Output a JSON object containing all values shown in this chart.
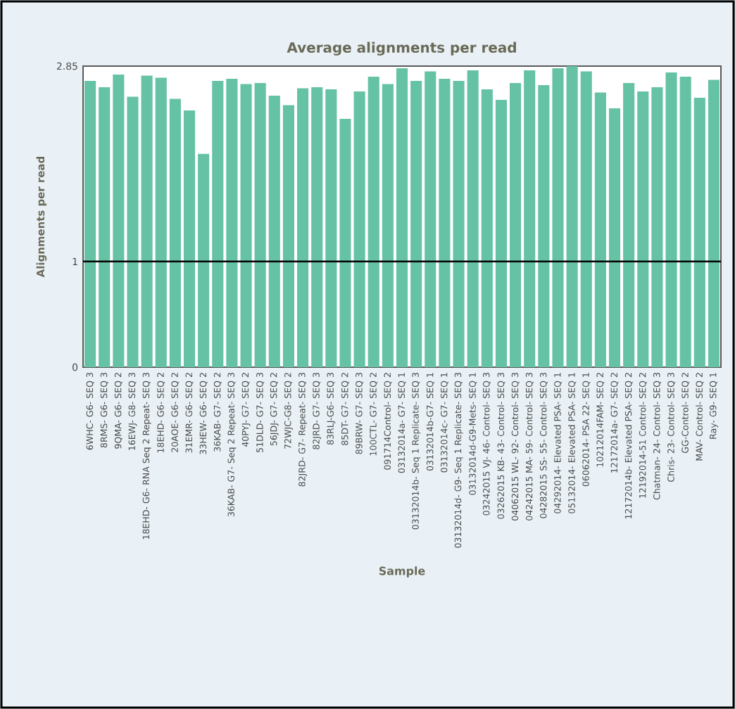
{
  "chart_data": {
    "type": "bar",
    "title": "Average alignments per read",
    "xlabel": "Sample",
    "ylabel": "Alignments per read",
    "categories": [
      "6WHC- G6- SEQ 3",
      "8RMS- G6- SEQ 3",
      "9QMA- G6- SEQ 2",
      "16EWJ- G8- SEQ 3",
      "18EHD- G6- RNA Seq 2 Repeat- SEQ 3",
      "18EHD- G6- SEQ 2",
      "20AOE- G6- SEQ 2",
      "31EMR- G6- SEQ 2",
      "33HEW- G6- SEQ 2",
      "36KAB- G7- SEQ 2",
      "36KAB- G7- Seq 2 Repeat- SEQ 3",
      "40PYJ- G7- SEQ 2",
      "51DLD- G7- SEQ 3",
      "56JDJ- G7- SEQ 2",
      "72WJC-G8- SEQ 2",
      "82JRD- G7- Repeat- SEQ 3",
      "82JRD- G7- SEQ 3",
      "83RLJ-G6- SEQ 3",
      "85DT- G7- SEQ 2",
      "89BRW- G7- SEQ 3",
      "100CTL- G7- SEQ 2",
      "091714Control- SEQ 2",
      "03132014a- G7- SEQ 1",
      "03132014b- Seq 1 Replicate- SEQ 3",
      "03132014b-G7- SEQ 1",
      "03132014c- G7- SEQ 1",
      "03132014d- G9- Seq 1 Replicate- SEQ 3",
      "03132014d-G9-Mets- SEQ 1",
      "03242015 VJ- 46- Control- SEQ 3",
      "03262015 KB- 43- Control- SEQ 3",
      "04062015 WL- 92- Control- SEQ 3",
      "04242015 MA- 59- Control- SEQ 3",
      "04282015 SS- 55- Control- SEQ 3",
      "04292014- Elevated PSA- SEQ 1",
      "05132014- Elevated PSA- SEQ 1",
      "06062014- PSA 22- SEQ 1",
      "10212014FAM- SEQ 2",
      "12172014a- G7- SEQ 2",
      "12172014b- Elevated PSA- SEQ 2",
      "12192014-51 Control- SEQ 2",
      "Chatman- 24- Control- SEQ 3",
      "Chris- 23- Control- SEQ 3",
      "GG-Control- SEQ 2",
      "MAV- Control- SEQ 2",
      "Ray- G9- SEQ 1"
    ],
    "values": [
      2.71,
      2.65,
      2.77,
      2.56,
      2.76,
      2.74,
      2.54,
      2.43,
      2.02,
      2.71,
      2.73,
      2.68,
      2.69,
      2.57,
      2.48,
      2.64,
      2.65,
      2.63,
      2.35,
      2.61,
      2.75,
      2.68,
      2.83,
      2.71,
      2.8,
      2.73,
      2.71,
      2.81,
      2.63,
      2.53,
      2.69,
      2.81,
      2.67,
      2.83,
      2.85,
      2.8,
      2.6,
      2.45,
      2.69,
      2.61,
      2.65,
      2.79,
      2.75,
      2.55,
      2.72
    ],
    "color": "#66c2a5",
    "ylim": [
      0,
      2.85
    ],
    "yticks": [
      0,
      1,
      2.85
    ],
    "ref_lines": [
      {
        "axis": "y",
        "value": 1,
        "color": "#000000"
      }
    ]
  }
}
